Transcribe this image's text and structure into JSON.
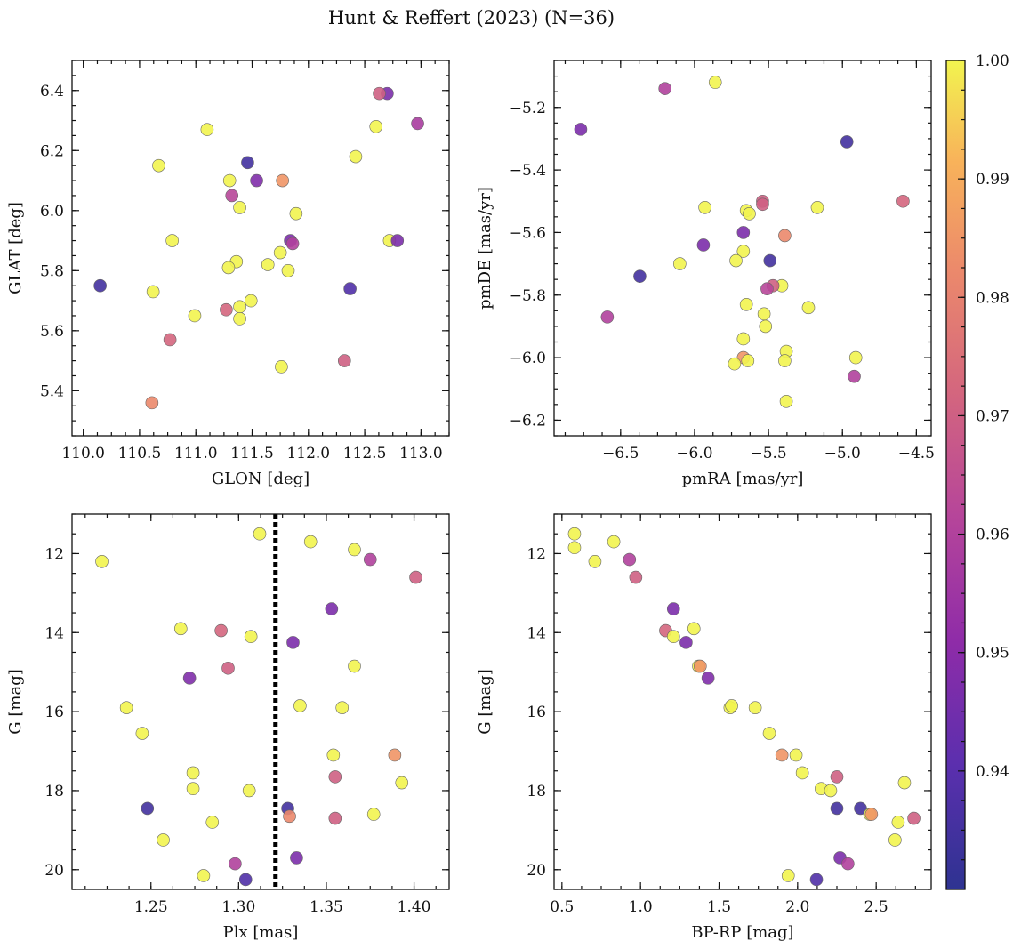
{
  "figure": {
    "title": "Hunt & Reffert (2023) (N=36)"
  },
  "colorbar": {
    "vmin": 0.93,
    "vmax": 1.0,
    "ticks": [
      0.94,
      0.95,
      0.96,
      0.97,
      0.98,
      0.99,
      1.0
    ],
    "tick_labels": [
      "0.94",
      "0.95",
      "0.96",
      "0.97",
      "0.98",
      "0.99",
      "1.00"
    ],
    "colormap": "plasma"
  },
  "chart_data": [
    {
      "type": "scatter",
      "name": "sky-position",
      "xlabel": "GLON [deg]",
      "ylabel": "GLAT [deg]",
      "xlim": [
        109.9,
        113.25
      ],
      "ylim": [
        5.25,
        6.5
      ],
      "xticks": [
        110.0,
        110.5,
        111.0,
        111.5,
        112.0,
        112.5,
        113.0
      ],
      "xtick_labels": [
        "110.0",
        "110.5",
        "111.0",
        "111.5",
        "112.0",
        "112.5",
        "113.0"
      ],
      "yticks": [
        5.4,
        5.6,
        5.8,
        6.0,
        6.2,
        6.4
      ],
      "ytick_labels": [
        "5.4",
        "5.6",
        "5.8",
        "6.0",
        "6.2",
        "6.4"
      ],
      "points": [
        {
          "x": 112.7,
          "y": 6.39,
          "c": 0.947
        },
        {
          "x": 112.63,
          "y": 6.39,
          "c": 0.97
        },
        {
          "x": 112.97,
          "y": 6.29,
          "c": 0.958
        },
        {
          "x": 112.6,
          "y": 6.28,
          "c": 1.0
        },
        {
          "x": 111.1,
          "y": 6.27,
          "c": 1.0
        },
        {
          "x": 112.42,
          "y": 6.18,
          "c": 1.0
        },
        {
          "x": 111.46,
          "y": 6.16,
          "c": 0.935
        },
        {
          "x": 110.67,
          "y": 6.15,
          "c": 1.0
        },
        {
          "x": 111.54,
          "y": 6.1,
          "c": 0.948
        },
        {
          "x": 111.3,
          "y": 6.1,
          "c": 1.0
        },
        {
          "x": 111.77,
          "y": 6.1,
          "c": 0.985
        },
        {
          "x": 111.32,
          "y": 6.05,
          "c": 0.962
        },
        {
          "x": 111.39,
          "y": 6.01,
          "c": 1.0
        },
        {
          "x": 111.89,
          "y": 5.99,
          "c": 1.0
        },
        {
          "x": 112.72,
          "y": 5.9,
          "c": 1.0
        },
        {
          "x": 110.79,
          "y": 5.9,
          "c": 1.0
        },
        {
          "x": 111.84,
          "y": 5.9,
          "c": 0.947
        },
        {
          "x": 111.86,
          "y": 5.89,
          "c": 0.96
        },
        {
          "x": 112.79,
          "y": 5.9,
          "c": 0.947
        },
        {
          "x": 111.75,
          "y": 5.86,
          "c": 1.0
        },
        {
          "x": 111.36,
          "y": 5.83,
          "c": 1.0
        },
        {
          "x": 111.64,
          "y": 5.82,
          "c": 1.0
        },
        {
          "x": 111.29,
          "y": 5.81,
          "c": 1.0
        },
        {
          "x": 111.82,
          "y": 5.8,
          "c": 1.0
        },
        {
          "x": 110.15,
          "y": 5.75,
          "c": 0.935
        },
        {
          "x": 112.37,
          "y": 5.74,
          "c": 0.938
        },
        {
          "x": 110.62,
          "y": 5.73,
          "c": 1.0
        },
        {
          "x": 111.49,
          "y": 5.7,
          "c": 1.0
        },
        {
          "x": 111.39,
          "y": 5.68,
          "c": 1.0
        },
        {
          "x": 111.27,
          "y": 5.67,
          "c": 0.972
        },
        {
          "x": 110.99,
          "y": 5.65,
          "c": 1.0
        },
        {
          "x": 111.39,
          "y": 5.64,
          "c": 1.0
        },
        {
          "x": 110.77,
          "y": 5.57,
          "c": 0.972
        },
        {
          "x": 111.76,
          "y": 5.48,
          "c": 1.0
        },
        {
          "x": 112.32,
          "y": 5.5,
          "c": 0.97
        },
        {
          "x": 110.61,
          "y": 5.36,
          "c": 0.982
        }
      ]
    },
    {
      "type": "scatter",
      "name": "proper-motion",
      "xlabel": "pmRA [mas/yr]",
      "ylabel": "pmDE [mas/yr]",
      "xlim": [
        -6.95,
        -4.4
      ],
      "ylim": [
        -6.25,
        -5.05
      ],
      "xticks": [
        -6.5,
        -6.0,
        -5.5,
        -5.0,
        -4.5
      ],
      "xtick_labels": [
        "−6.5",
        "−6.0",
        "−5.5",
        "−5.0",
        "−4.5"
      ],
      "yticks": [
        -6.2,
        -6.0,
        -5.8,
        -5.6,
        -5.4,
        -5.2
      ],
      "ytick_labels": [
        "−6.2",
        "−6.0",
        "−5.8",
        "−5.6",
        "−5.4",
        "−5.2"
      ],
      "points": [
        {
          "x": -5.86,
          "y": -5.12,
          "c": 1.0
        },
        {
          "x": -6.2,
          "y": -5.14,
          "c": 0.96
        },
        {
          "x": -6.77,
          "y": -5.27,
          "c": 0.947
        },
        {
          "x": -4.97,
          "y": -5.31,
          "c": 0.935
        },
        {
          "x": -5.54,
          "y": -5.5,
          "c": 0.97
        },
        {
          "x": -5.54,
          "y": -5.51,
          "c": 0.97
        },
        {
          "x": -5.93,
          "y": -5.52,
          "c": 1.0
        },
        {
          "x": -5.65,
          "y": -5.53,
          "c": 1.0
        },
        {
          "x": -5.63,
          "y": -5.54,
          "c": 1.0
        },
        {
          "x": -5.17,
          "y": -5.52,
          "c": 1.0
        },
        {
          "x": -4.59,
          "y": -5.5,
          "c": 0.972
        },
        {
          "x": -5.67,
          "y": -5.6,
          "c": 0.947
        },
        {
          "x": -5.39,
          "y": -5.61,
          "c": 0.982
        },
        {
          "x": -5.94,
          "y": -5.64,
          "c": 0.947
        },
        {
          "x": -5.67,
          "y": -5.66,
          "c": 1.0
        },
        {
          "x": -5.72,
          "y": -5.69,
          "c": 1.0
        },
        {
          "x": -6.1,
          "y": -5.7,
          "c": 1.0
        },
        {
          "x": -5.49,
          "y": -5.69,
          "c": 0.935
        },
        {
          "x": -6.37,
          "y": -5.74,
          "c": 0.935
        },
        {
          "x": -5.41,
          "y": -5.77,
          "c": 1.0
        },
        {
          "x": -5.47,
          "y": -5.77,
          "c": 0.97
        },
        {
          "x": -5.51,
          "y": -5.78,
          "c": 0.962
        },
        {
          "x": -6.59,
          "y": -5.87,
          "c": 0.96
        },
        {
          "x": -5.23,
          "y": -5.84,
          "c": 1.0
        },
        {
          "x": -5.65,
          "y": -5.83,
          "c": 1.0
        },
        {
          "x": -5.53,
          "y": -5.86,
          "c": 1.0
        },
        {
          "x": -5.52,
          "y": -5.9,
          "c": 1.0
        },
        {
          "x": -5.67,
          "y": -5.94,
          "c": 1.0
        },
        {
          "x": -5.38,
          "y": -5.98,
          "c": 1.0
        },
        {
          "x": -5.67,
          "y": -6.0,
          "c": 0.985
        },
        {
          "x": -4.91,
          "y": -6.0,
          "c": 1.0
        },
        {
          "x": -5.39,
          "y": -6.01,
          "c": 1.0
        },
        {
          "x": -5.64,
          "y": -6.01,
          "c": 1.0
        },
        {
          "x": -5.73,
          "y": -6.02,
          "c": 1.0
        },
        {
          "x": -4.92,
          "y": -6.06,
          "c": 0.96
        },
        {
          "x": -5.38,
          "y": -6.14,
          "c": 1.0
        }
      ]
    },
    {
      "type": "scatter",
      "name": "parallax-magnitude",
      "xlabel": "Plx [mas]",
      "ylabel": "G [mag]",
      "xlim": [
        1.205,
        1.42
      ],
      "ylim": [
        20.5,
        11.0
      ],
      "y_inverted": true,
      "vline": 1.321,
      "xticks": [
        1.25,
        1.3,
        1.35,
        1.4
      ],
      "xtick_labels": [
        "1.25",
        "1.30",
        "1.35",
        "1.40"
      ],
      "yticks": [
        12,
        14,
        16,
        18,
        20
      ],
      "ytick_labels": [
        "12",
        "14",
        "16",
        "18",
        "20"
      ],
      "points": [
        {
          "x": 1.312,
          "y": 11.5,
          "c": 1.0
        },
        {
          "x": 1.341,
          "y": 11.7,
          "c": 1.0
        },
        {
          "x": 1.366,
          "y": 11.9,
          "c": 1.0
        },
        {
          "x": 1.375,
          "y": 12.15,
          "c": 0.96
        },
        {
          "x": 1.222,
          "y": 12.2,
          "c": 1.0
        },
        {
          "x": 1.401,
          "y": 12.6,
          "c": 0.97
        },
        {
          "x": 1.353,
          "y": 13.4,
          "c": 0.947
        },
        {
          "x": 1.267,
          "y": 13.9,
          "c": 1.0
        },
        {
          "x": 1.29,
          "y": 13.95,
          "c": 0.972
        },
        {
          "x": 1.307,
          "y": 14.1,
          "c": 1.0
        },
        {
          "x": 1.331,
          "y": 14.25,
          "c": 0.947
        },
        {
          "x": 1.294,
          "y": 14.9,
          "c": 0.97
        },
        {
          "x": 1.366,
          "y": 14.85,
          "c": 1.0
        },
        {
          "x": 1.272,
          "y": 15.15,
          "c": 0.948
        },
        {
          "x": 1.236,
          "y": 15.9,
          "c": 1.0
        },
        {
          "x": 1.335,
          "y": 15.85,
          "c": 1.0
        },
        {
          "x": 1.359,
          "y": 15.9,
          "c": 1.0
        },
        {
          "x": 1.245,
          "y": 16.55,
          "c": 1.0
        },
        {
          "x": 1.354,
          "y": 17.1,
          "c": 1.0
        },
        {
          "x": 1.389,
          "y": 17.1,
          "c": 0.985
        },
        {
          "x": 1.274,
          "y": 17.55,
          "c": 1.0
        },
        {
          "x": 1.355,
          "y": 17.65,
          "c": 0.97
        },
        {
          "x": 1.393,
          "y": 17.8,
          "c": 1.0
        },
        {
          "x": 1.274,
          "y": 17.95,
          "c": 1.0
        },
        {
          "x": 1.306,
          "y": 18.0,
          "c": 1.0
        },
        {
          "x": 1.248,
          "y": 18.45,
          "c": 0.935
        },
        {
          "x": 1.328,
          "y": 18.45,
          "c": 0.935
        },
        {
          "x": 1.377,
          "y": 18.6,
          "c": 1.0
        },
        {
          "x": 1.329,
          "y": 18.65,
          "c": 0.982
        },
        {
          "x": 1.355,
          "y": 18.7,
          "c": 0.97
        },
        {
          "x": 1.285,
          "y": 18.8,
          "c": 1.0
        },
        {
          "x": 1.257,
          "y": 19.25,
          "c": 1.0
        },
        {
          "x": 1.333,
          "y": 19.7,
          "c": 0.947
        },
        {
          "x": 1.298,
          "y": 19.85,
          "c": 0.96
        },
        {
          "x": 1.28,
          "y": 20.15,
          "c": 1.0
        },
        {
          "x": 1.304,
          "y": 20.25,
          "c": 0.938
        }
      ]
    },
    {
      "type": "scatter",
      "name": "color-magnitude",
      "xlabel": "BP-RP [mag]",
      "ylabel": "G [mag]",
      "xlim": [
        0.45,
        2.85
      ],
      "ylim": [
        20.5,
        11.0
      ],
      "y_inverted": true,
      "xticks": [
        0.5,
        1.0,
        1.5,
        2.0,
        2.5
      ],
      "xtick_labels": [
        "0.5",
        "1.0",
        "1.5",
        "2.0",
        "2.5"
      ],
      "yticks": [
        12,
        14,
        16,
        18,
        20
      ],
      "ytick_labels": [
        "12",
        "14",
        "16",
        "18",
        "20"
      ],
      "points": [
        {
          "x": 0.58,
          "y": 11.5,
          "c": 1.0
        },
        {
          "x": 0.58,
          "y": 11.85,
          "c": 1.0
        },
        {
          "x": 0.83,
          "y": 11.7,
          "c": 1.0
        },
        {
          "x": 0.71,
          "y": 12.2,
          "c": 1.0
        },
        {
          "x": 0.93,
          "y": 12.15,
          "c": 0.96
        },
        {
          "x": 0.97,
          "y": 12.6,
          "c": 0.97
        },
        {
          "x": 1.21,
          "y": 13.4,
          "c": 0.947
        },
        {
          "x": 1.16,
          "y": 13.95,
          "c": 0.972
        },
        {
          "x": 1.34,
          "y": 13.9,
          "c": 1.0
        },
        {
          "x": 1.21,
          "y": 14.1,
          "c": 1.0
        },
        {
          "x": 1.29,
          "y": 14.25,
          "c": 0.947
        },
        {
          "x": 1.37,
          "y": 14.85,
          "c": 1.0
        },
        {
          "x": 1.38,
          "y": 14.85,
          "c": 0.985
        },
        {
          "x": 1.43,
          "y": 15.15,
          "c": 0.948
        },
        {
          "x": 1.57,
          "y": 15.9,
          "c": 1.0
        },
        {
          "x": 1.58,
          "y": 15.85,
          "c": 1.0
        },
        {
          "x": 1.73,
          "y": 15.9,
          "c": 1.0
        },
        {
          "x": 1.82,
          "y": 16.55,
          "c": 1.0
        },
        {
          "x": 1.9,
          "y": 17.1,
          "c": 0.985
        },
        {
          "x": 1.99,
          "y": 17.1,
          "c": 1.0
        },
        {
          "x": 2.03,
          "y": 17.55,
          "c": 1.0
        },
        {
          "x": 2.25,
          "y": 17.65,
          "c": 0.97
        },
        {
          "x": 2.68,
          "y": 17.8,
          "c": 1.0
        },
        {
          "x": 2.15,
          "y": 17.95,
          "c": 1.0
        },
        {
          "x": 2.21,
          "y": 18.0,
          "c": 1.0
        },
        {
          "x": 2.25,
          "y": 18.45,
          "c": 0.935
        },
        {
          "x": 2.4,
          "y": 18.45,
          "c": 0.935
        },
        {
          "x": 2.46,
          "y": 18.6,
          "c": 1.0
        },
        {
          "x": 2.47,
          "y": 18.6,
          "c": 0.985
        },
        {
          "x": 2.74,
          "y": 18.7,
          "c": 0.97
        },
        {
          "x": 2.64,
          "y": 18.8,
          "c": 1.0
        },
        {
          "x": 2.62,
          "y": 19.25,
          "c": 1.0
        },
        {
          "x": 2.27,
          "y": 19.7,
          "c": 0.947
        },
        {
          "x": 2.32,
          "y": 19.85,
          "c": 0.96
        },
        {
          "x": 1.94,
          "y": 20.15,
          "c": 1.0
        },
        {
          "x": 2.12,
          "y": 20.25,
          "c": 0.938
        }
      ]
    }
  ]
}
